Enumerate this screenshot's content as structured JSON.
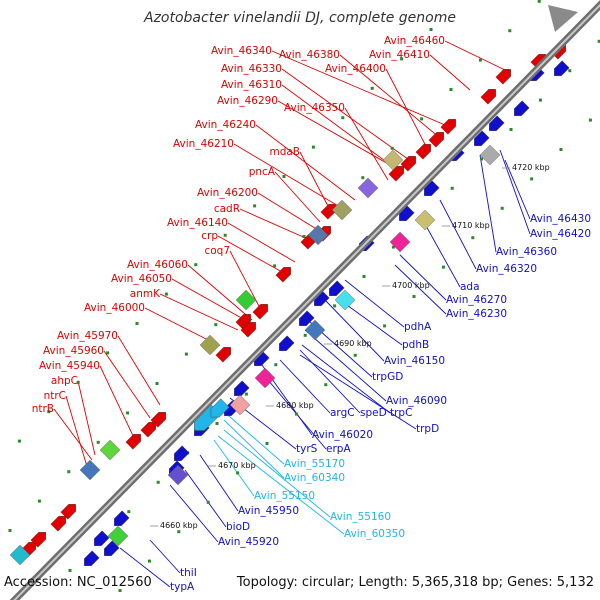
{
  "title": "Azotobacter vinelandii DJ, complete genome",
  "accession": "Accession: NC_012560",
  "summary": "Topology: circular; Length: 5,365,318 bp; Genes: 5,132",
  "colors": {
    "red": "#e00000",
    "blue": "#1010cc",
    "cyan": "#22b5e8",
    "backbone": "#888888"
  },
  "ticks": [
    "4660 kbp",
    "4670 kbp",
    "4680 kbp",
    "4690 kbp",
    "4700 kbp",
    "4710 kbp",
    "4720 kbp"
  ],
  "labels_red": [
    "Avin_46460",
    "Avin_46410",
    "Avin_46340",
    "Avin_46380",
    "Avin_46400",
    "Avin_46330",
    "Avin_46310",
    "Avin_46290",
    "Avin_46350",
    "Avin_46240",
    "Avin_46210",
    "mdaB",
    "pncA",
    "Avin_46200",
    "cadR",
    "Avin_46140",
    "crp",
    "coq7",
    "Avin_46060",
    "Avin_46050",
    "anmK",
    "Avin_46000",
    "Avin_45970",
    "Avin_45960",
    "Avin_45940",
    "ahpC",
    "ntrC",
    "ntrB"
  ],
  "labels_blue": [
    "Avin_46430",
    "Avin_46420",
    "Avin_46360",
    "Avin_46320",
    "ada",
    "Avin_46270",
    "Avin_46230",
    "pdhA",
    "pdhB",
    "Avin_46150",
    "trpGD",
    "Avin_46090",
    "speD",
    "trpC",
    "argC",
    "trpD",
    "Avin_46020",
    "erpA",
    "tyrS",
    "Avin_45950",
    "bioD",
    "Avin_45920",
    "thiI",
    "typA"
  ],
  "labels_cyan": [
    "Avin_55170",
    "Avin_60340",
    "Avin_55150",
    "Avin_55160",
    "Avin_60350"
  ]
}
